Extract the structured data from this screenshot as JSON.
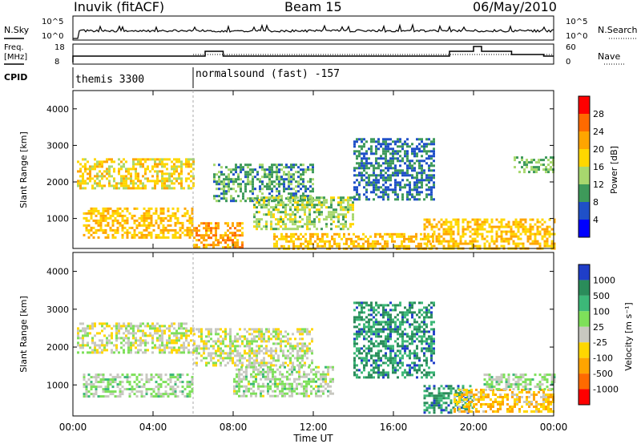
{
  "header": {
    "station": "Inuvik (fitACF)",
    "beam": "Beam 15",
    "date": "06/May/2010"
  },
  "panels": {
    "nsky": {
      "left_label": "N.Sky",
      "right_label": "N.Search",
      "left_ticks": [
        "10^5",
        "10^0"
      ],
      "right_ticks": [
        "10^5",
        "10^0"
      ]
    },
    "freq": {
      "left_label_1": "Freq.",
      "left_label_2": "[MHz]",
      "right_label": "Nave",
      "left_ticks": [
        "18",
        "8"
      ],
      "right_ticks": [
        "60",
        "0"
      ]
    },
    "cpid": {
      "label": "CPID",
      "modes": [
        "themis 3300",
        "normalsound (fast) -157"
      ]
    }
  },
  "power_panel": {
    "ylabel": "Slant Range [km]",
    "yticks": [
      "4000",
      "3000",
      "2000",
      "1000"
    ],
    "colorbar_label": "Power [dB]",
    "colorbar_ticks": [
      "28",
      "24",
      "20",
      "16",
      "12",
      "8",
      "4"
    ],
    "colors": [
      "#ff0000",
      "#ff6a00",
      "#ffa500",
      "#ffd700",
      "#a8d86e",
      "#3e9a5a",
      "#1f50c8",
      "#0000ff"
    ]
  },
  "velocity_panel": {
    "ylabel": "Slant Range [km]",
    "yticks": [
      "4000",
      "3000",
      "2000",
      "1000"
    ],
    "colorbar_label": "Velocity [m s⁻¹]",
    "colorbar_ticks": [
      "1000",
      "500",
      "100",
      "25",
      "-25",
      "-100",
      "-500",
      "-1000"
    ],
    "colors": [
      "#1f3ec8",
      "#2a8c5a",
      "#3cb878",
      "#7ee05a",
      "#c8c8c0",
      "#ffd700",
      "#ffa500",
      "#ff6a00",
      "#ff0000"
    ]
  },
  "xaxis": {
    "label": "Time UT",
    "ticks": [
      "00:00",
      "04:00",
      "08:00",
      "12:00",
      "16:00",
      "20:00",
      "00:00"
    ]
  },
  "chart_data": {
    "type": "heatmap",
    "x_range_hours": [
      0,
      24
    ],
    "y_range_km": [
      180,
      4500
    ],
    "mode_change_hour": 6.0,
    "panels": [
      {
        "name": "Power [dB]",
        "colorbar_range": [
          0,
          32
        ],
        "regions": [
          {
            "t0": 0.2,
            "t1": 6.0,
            "r0": 1850,
            "r1": 2650,
            "level": 18
          },
          {
            "t0": 0.5,
            "t1": 6.0,
            "r0": 450,
            "r1": 1300,
            "level": 20
          },
          {
            "t0": 6.0,
            "t1": 8.5,
            "r0": 180,
            "r1": 900,
            "level": 22
          },
          {
            "t0": 7.0,
            "t1": 12.0,
            "r0": 1500,
            "r1": 2500,
            "level": 10
          },
          {
            "t0": 9.0,
            "t1": 14.0,
            "r0": 700,
            "r1": 1600,
            "level": 14
          },
          {
            "t0": 10.0,
            "t1": 18.0,
            "r0": 180,
            "r1": 600,
            "level": 20
          },
          {
            "t0": 14.0,
            "t1": 18.0,
            "r0": 1500,
            "r1": 3200,
            "level": 8
          },
          {
            "t0": 17.5,
            "t1": 24.0,
            "r0": 180,
            "r1": 1000,
            "level": 20
          },
          {
            "t0": 22.0,
            "t1": 24.0,
            "r0": 2300,
            "r1": 2700,
            "level": 12
          }
        ]
      },
      {
        "name": "Velocity [m s-1]",
        "colorbar_range": [
          -1000,
          1000
        ],
        "regions": [
          {
            "t0": 0.2,
            "t1": 6.0,
            "r0": 1850,
            "r1": 2650,
            "level": 0
          },
          {
            "t0": 0.5,
            "t1": 6.0,
            "r0": 700,
            "r1": 1300,
            "level": 150
          },
          {
            "t0": 6.0,
            "t1": 12.0,
            "r0": 1500,
            "r1": 2500,
            "level": 0
          },
          {
            "t0": 8.0,
            "t1": 13.0,
            "r0": 700,
            "r1": 1500,
            "level": 120
          },
          {
            "t0": 14.0,
            "t1": 18.0,
            "r0": 1200,
            "r1": 3200,
            "level": 600
          },
          {
            "t0": 17.5,
            "t1": 20.0,
            "r0": 300,
            "r1": 1000,
            "level": 600
          },
          {
            "t0": 19.0,
            "t1": 24.0,
            "r0": 300,
            "r1": 900,
            "level": -300
          },
          {
            "t0": 20.5,
            "t1": 24.0,
            "r0": 900,
            "r1": 1300,
            "level": 150
          }
        ]
      }
    ]
  }
}
